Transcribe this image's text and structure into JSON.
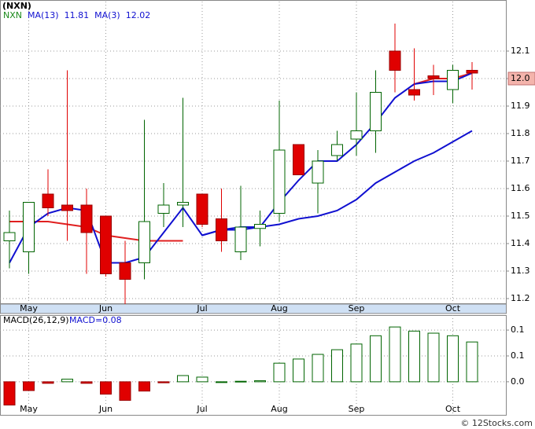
{
  "chart_data": [
    {
      "type": "candlestick",
      "title": "(NXN)",
      "categories": [
        null,
        "May",
        null,
        null,
        null,
        "Jun",
        null,
        null,
        null,
        null,
        "Jul",
        null,
        null,
        null,
        "Aug",
        null,
        null,
        null,
        "Sep",
        null,
        null,
        null,
        null,
        "Oct",
        null
      ],
      "name": "NXN",
      "name_color": "#1a8a1a",
      "open": [
        11.41,
        11.37,
        11.58,
        11.54,
        11.54,
        11.5,
        11.33,
        11.33,
        11.51,
        11.54,
        11.58,
        11.49,
        11.37,
        11.455,
        11.51,
        11.76,
        11.62,
        11.72,
        11.78,
        11.81,
        12.1,
        11.96,
        12.01,
        11.96,
        12.03
      ],
      "high": [
        11.52,
        11.55,
        11.67,
        12.03,
        11.6,
        11.5,
        11.41,
        11.85,
        11.62,
        11.93,
        11.58,
        11.6,
        11.61,
        11.52,
        11.92,
        11.76,
        11.74,
        11.81,
        11.95,
        12.03,
        12.2,
        12.11,
        12.05,
        12.05,
        12.06
      ],
      "low": [
        11.31,
        11.29,
        11.5,
        11.41,
        11.29,
        11.28,
        11.18,
        11.27,
        11.46,
        11.46,
        11.46,
        11.37,
        11.34,
        11.39,
        11.48,
        11.65,
        11.51,
        11.7,
        11.72,
        11.73,
        11.95,
        11.92,
        11.94,
        11.91,
        11.96
      ],
      "close": [
        11.44,
        11.55,
        11.53,
        11.52,
        11.44,
        11.29,
        11.27,
        11.48,
        11.54,
        11.55,
        11.47,
        11.41,
        11.46,
        11.47,
        11.74,
        11.65,
        11.7,
        11.76,
        11.81,
        11.95,
        12.03,
        11.94,
        12.0,
        12.03,
        12.02
      ],
      "up_color": "#006400",
      "down_color": "#e00000",
      "series": [
        {
          "values": [
            11.48,
            11.48,
            11.48,
            11.47,
            11.46,
            11.43,
            11.42,
            11.41,
            11.41,
            11.41,
            null,
            null,
            null,
            null,
            null,
            null,
            null,
            null,
            null,
            null,
            null,
            11.98,
            12.0,
            12.0,
            12.02
          ],
          "color": "#e02020"
        },
        {
          "name": "MA(13)",
          "legend_value": 11.81,
          "color": "#1010d0",
          "values": [
            null,
            null,
            null,
            null,
            null,
            null,
            null,
            null,
            null,
            null,
            11.43,
            11.45,
            11.46,
            11.46,
            11.47,
            11.49,
            11.5,
            11.52,
            11.56,
            11.62,
            11.66,
            11.7,
            11.73,
            11.77,
            11.81
          ]
        },
        {
          "name": "MA(3)",
          "legend_value": 12.02,
          "color": "#1010d0",
          "values": [
            11.33,
            11.46,
            11.51,
            11.53,
            11.52,
            11.33,
            11.33,
            11.35,
            11.44,
            11.53,
            11.43,
            11.45,
            11.45,
            11.46,
            11.55,
            11.63,
            11.7,
            11.7,
            11.76,
            11.84,
            11.93,
            11.98,
            11.99,
            11.99,
            12.02
          ]
        }
      ],
      "ylim": [
        11.18,
        12.28
      ],
      "yticks": [
        11.2,
        11.3,
        11.4,
        11.5,
        11.6,
        11.7,
        11.8,
        11.9,
        {
          "value": 12,
          "label": "12.0"
        },
        12.1
      ],
      "price_box_color": "#f4b4ac",
      "grid": true
    },
    {
      "type": "histogram",
      "title": "MACD(26,12,9)",
      "legend_label": "MACD=0.08",
      "categories": [
        null,
        "May",
        null,
        null,
        null,
        "Jun",
        null,
        null,
        null,
        null,
        "Jul",
        null,
        null,
        null,
        "Aug",
        null,
        null,
        null,
        "Sep",
        null,
        null,
        null,
        null,
        "Oct",
        null
      ],
      "values": [
        -0.045,
        -0.017,
        -0.003,
        0.005,
        -0.003,
        -0.024,
        -0.036,
        -0.018,
        -0.002,
        0.012,
        0.009,
        0.0,
        0.001,
        0.002,
        0.036,
        0.044,
        0.053,
        0.062,
        0.073,
        0.089,
        0.106,
        0.098,
        0.094,
        0.089,
        0.077
      ],
      "up_color": "#006400",
      "down_color": "#e00000",
      "ylim": [
        -0.064,
        0.129
      ],
      "yticks": [
        0.1,
        {
          "value": 0.05,
          "label": "0.1"
        },
        {
          "value": 0,
          "label": "0.0"
        }
      ],
      "grid": true
    },
    {
      "type": "note",
      "text": "© 12Stocks.com"
    }
  ]
}
